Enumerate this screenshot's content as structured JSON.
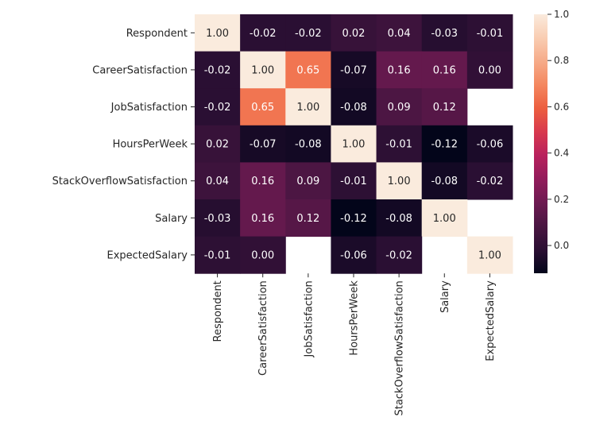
{
  "chart_data": {
    "type": "heatmap",
    "title": "",
    "xlabel": "",
    "ylabel": "",
    "rows": [
      "Respondent",
      "CareerSatisfaction",
      "JobSatisfaction",
      "HoursPerWeek",
      "StackOverflowSatisfaction",
      "Salary",
      "ExpectedSalary"
    ],
    "columns": [
      "Respondent",
      "CareerSatisfaction",
      "JobSatisfaction",
      "HoursPerWeek",
      "StackOverflowSatisfaction",
      "Salary",
      "ExpectedSalary"
    ],
    "values": [
      [
        1.0,
        -0.02,
        -0.02,
        0.02,
        0.04,
        -0.03,
        -0.01
      ],
      [
        -0.02,
        1.0,
        0.65,
        -0.07,
        0.16,
        0.16,
        0.0
      ],
      [
        -0.02,
        0.65,
        1.0,
        -0.08,
        0.09,
        0.12,
        null
      ],
      [
        0.02,
        -0.07,
        -0.08,
        1.0,
        -0.01,
        -0.12,
        -0.06
      ],
      [
        0.04,
        0.16,
        0.09,
        -0.01,
        1.0,
        -0.08,
        -0.02
      ],
      [
        -0.03,
        0.16,
        0.12,
        -0.12,
        -0.08,
        1.0,
        null
      ],
      [
        -0.01,
        0.0,
        null,
        -0.06,
        -0.02,
        null,
        1.0
      ]
    ],
    "value_format": "0.00",
    "colorbar": {
      "range": [
        -0.12,
        1.0
      ],
      "ticks": [
        0.0,
        0.2,
        0.4,
        0.6,
        0.8,
        1.0
      ],
      "tick_labels": [
        "0.0",
        "0.2",
        "0.4",
        "0.6",
        "0.8",
        "1.0"
      ],
      "colormap": "rocket",
      "stops": [
        "#03051a",
        "#2b0f33",
        "#4a1642",
        "#6d1a51",
        "#921c5b",
        "#b8215d",
        "#d8394e",
        "#ec5e3f",
        "#f4875f",
        "#f6ab89",
        "#f9cdb2",
        "#faebdd"
      ]
    },
    "grid": false,
    "legend": "colorbar-right"
  }
}
